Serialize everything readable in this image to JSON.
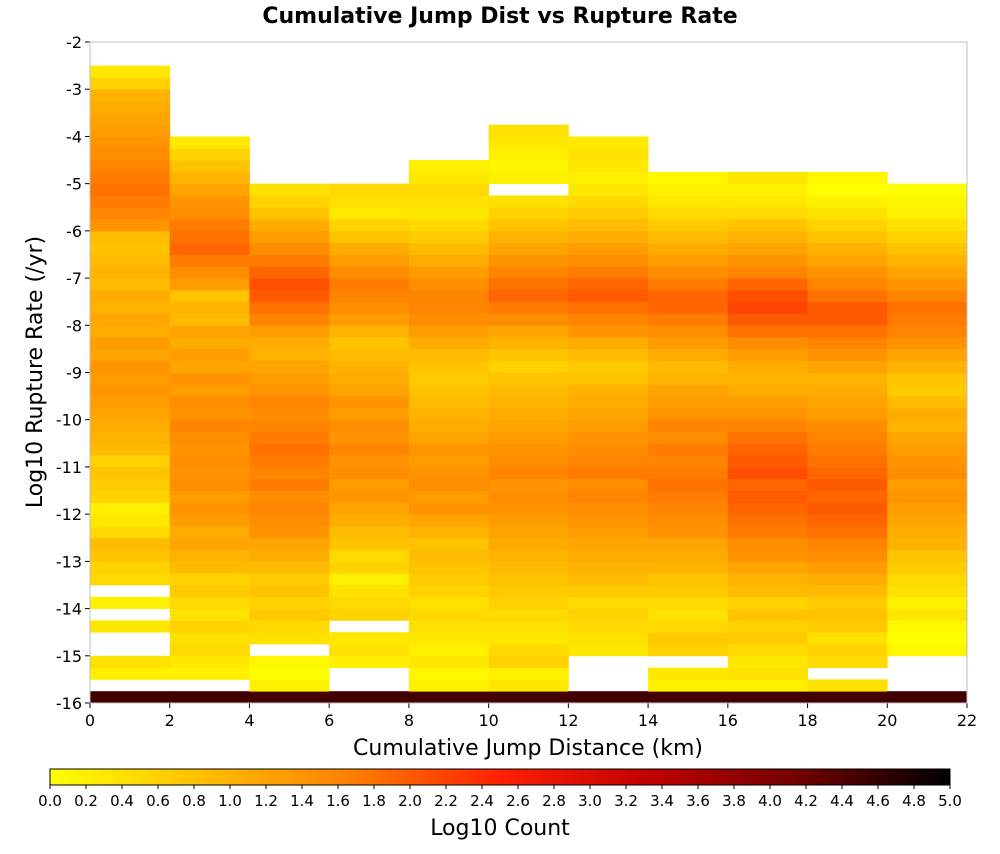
{
  "chart_data": {
    "type": "heatmap",
    "title": "Cumulative Jump Dist vs Rupture Rate",
    "xlabel": "Cumulative Jump Distance (km)",
    "ylabel": "Log10 Rupture Rate (/yr)",
    "xlim": [
      0,
      22
    ],
    "ylim": [
      -16,
      -2
    ],
    "x_ticks": [
      "0",
      "2",
      "4",
      "6",
      "8",
      "10",
      "12",
      "14",
      "16",
      "18",
      "20",
      "22"
    ],
    "y_ticks": [
      "-2",
      "-3",
      "-4",
      "-5",
      "-6",
      "-7",
      "-8",
      "-9",
      "-10",
      "-11",
      "-12",
      "-13",
      "-14",
      "-15",
      "-16"
    ],
    "x_bin_edges": [
      0,
      2,
      4,
      6,
      8,
      10,
      12,
      14,
      16,
      18,
      20,
      22
    ],
    "y_bin_size": 0.25,
    "colorbar": {
      "label": "Log10 Count",
      "range": [
        0,
        5
      ],
      "ticks": [
        "0.0",
        "0.2",
        "0.4",
        "0.6",
        "0.8",
        "1.0",
        "1.2",
        "1.4",
        "1.6",
        "1.8",
        "2.0",
        "2.2",
        "2.4",
        "2.6",
        "2.8",
        "3.0",
        "3.2",
        "3.4",
        "3.6",
        "3.8",
        "4.0",
        "4.2",
        "4.4",
        "4.6",
        "4.8",
        "5.0"
      ],
      "colors": [
        "#ffff00",
        "#ffc000",
        "#ff8000",
        "#ff2000",
        "#c00000",
        "#700000",
        "#000000"
      ]
    },
    "columns": [
      {
        "x_range": [
          0,
          2
        ],
        "y_start": -16,
        "values": [
          4.5,
          null,
          0.2,
          0.4,
          null,
          null,
          0.3,
          null,
          0.2,
          null,
          0.5,
          0.6,
          0.8,
          0.9,
          0.5,
          0.3,
          0.2,
          0.6,
          0.7,
          0.8,
          0.6,
          0.9,
          1.0,
          1.1,
          1.2,
          1.3,
          1.4,
          1.3,
          1.4,
          1.2,
          1.3,
          1.1,
          1.2,
          1.0,
          1.1,
          0.9,
          1.0,
          0.9,
          0.8,
          0.9,
          1.4,
          1.6,
          1.7,
          1.8,
          1.7,
          1.6,
          1.5,
          1.4,
          1.3,
          1.2,
          1.1,
          1.0,
          0.6,
          0.3,
          null,
          null,
          null,
          null
        ]
      },
      {
        "x_range": [
          2,
          4
        ],
        "y_start": -16,
        "values": [
          4.5,
          null,
          0.2,
          0.3,
          0.5,
          0.4,
          0.6,
          0.4,
          0.5,
          0.7,
          0.6,
          0.9,
          1.0,
          1.2,
          1.1,
          1.3,
          1.4,
          1.3,
          1.5,
          1.4,
          1.5,
          1.4,
          1.5,
          1.6,
          1.4,
          1.5,
          1.3,
          1.4,
          1.2,
          1.3,
          1.1,
          1.2,
          0.9,
          1.0,
          0.8,
          1.3,
          1.5,
          1.7,
          1.9,
          1.8,
          1.7,
          1.5,
          1.4,
          1.2,
          1.0,
          0.8,
          0.6,
          0.3,
          null,
          null,
          null,
          null,
          null,
          null,
          null,
          null,
          null,
          null
        ]
      },
      {
        "x_range": [
          4,
          6
        ],
        "y_start": -16,
        "values": [
          4.5,
          0.2,
          0.0,
          0.1,
          null,
          0.4,
          0.5,
          0.7,
          0.6,
          0.8,
          0.7,
          0.9,
          1.1,
          1.2,
          1.4,
          1.5,
          1.6,
          1.5,
          1.7,
          1.6,
          1.7,
          1.8,
          1.7,
          1.6,
          1.5,
          1.6,
          1.4,
          1.3,
          1.2,
          1.0,
          1.1,
          1.3,
          1.6,
          1.8,
          2.0,
          2.1,
          1.9,
          1.7,
          1.5,
          1.3,
          1.1,
          0.8,
          0.6,
          0.4,
          null,
          null,
          null,
          null,
          null,
          null,
          null,
          null,
          null,
          null,
          null,
          null,
          null,
          null
        ]
      },
      {
        "x_range": [
          6,
          8
        ],
        "y_start": -16,
        "values": [
          4.5,
          null,
          null,
          0.2,
          0.4,
          0.3,
          null,
          0.6,
          0.5,
          0.4,
          0.2,
          0.6,
          0.5,
          0.8,
          0.9,
          1.1,
          1.2,
          1.4,
          1.3,
          1.5,
          1.4,
          1.6,
          1.4,
          1.5,
          1.3,
          1.4,
          1.2,
          1.1,
          1.0,
          0.9,
          0.8,
          1.0,
          1.3,
          1.5,
          1.6,
          1.7,
          1.5,
          1.3,
          1.1,
          0.8,
          0.6,
          0.3,
          0.4,
          0.5,
          null,
          null,
          null,
          null,
          null,
          null,
          null,
          null,
          null,
          null,
          null,
          null,
          null,
          null
        ]
      },
      {
        "x_range": [
          8,
          10
        ],
        "y_start": -16,
        "values": [
          4.5,
          0.2,
          0.1,
          0.3,
          0.2,
          0.3,
          0.4,
          0.5,
          0.4,
          0.6,
          0.7,
          0.8,
          0.9,
          0.8,
          1.0,
          1.2,
          1.4,
          1.3,
          1.5,
          1.4,
          1.3,
          1.4,
          1.2,
          1.1,
          1.0,
          0.9,
          0.8,
          0.7,
          0.8,
          0.9,
          1.1,
          1.3,
          1.5,
          1.6,
          1.6,
          1.5,
          1.3,
          1.1,
          0.9,
          0.7,
          0.5,
          0.3,
          0.4,
          0.5,
          0.3,
          0.2,
          null,
          null,
          null,
          null,
          null,
          null,
          null,
          null,
          null,
          null,
          null,
          null
        ]
      },
      {
        "x_range": [
          10,
          12
        ],
        "y_start": -16,
        "values": [
          4.5,
          0.3,
          0.2,
          0.6,
          0.5,
          0.3,
          0.4,
          0.5,
          0.6,
          0.7,
          0.8,
          0.9,
          1.0,
          1.1,
          1.2,
          1.3,
          1.4,
          1.5,
          1.4,
          1.6,
          1.5,
          1.4,
          1.3,
          1.2,
          1.1,
          1.0,
          0.9,
          0.8,
          0.6,
          0.8,
          1.0,
          1.2,
          1.5,
          1.7,
          1.9,
          1.8,
          1.6,
          1.4,
          1.2,
          1.0,
          0.8,
          0.6,
          0.4,
          null,
          0.2,
          0.1,
          0.2,
          0.3,
          0.4,
          null,
          null,
          null,
          null,
          null,
          null,
          null,
          null,
          null
        ]
      },
      {
        "x_range": [
          12,
          14
        ],
        "y_start": -16,
        "values": [
          4.5,
          null,
          null,
          null,
          0.3,
          0.4,
          0.5,
          0.6,
          0.5,
          0.7,
          0.9,
          1.0,
          1.1,
          1.2,
          1.3,
          1.4,
          1.5,
          1.6,
          1.5,
          1.7,
          1.6,
          1.5,
          1.4,
          1.3,
          1.2,
          1.1,
          1.0,
          0.8,
          0.7,
          0.9,
          1.1,
          1.4,
          1.6,
          1.8,
          2.0,
          1.9,
          1.7,
          1.5,
          1.3,
          1.1,
          0.9,
          0.7,
          0.5,
          0.3,
          0.2,
          0.3,
          0.4,
          0.3,
          null,
          null,
          null,
          null,
          null,
          null,
          null,
          null,
          null,
          null
        ]
      },
      {
        "x_range": [
          14,
          16
        ],
        "y_start": -16,
        "values": [
          4.5,
          0.2,
          0.3,
          null,
          0.6,
          0.7,
          0.5,
          0.4,
          0.5,
          0.7,
          0.8,
          1.0,
          1.1,
          1.2,
          1.4,
          1.5,
          1.6,
          1.7,
          1.8,
          1.7,
          1.6,
          1.7,
          1.5,
          1.6,
          1.4,
          1.3,
          1.2,
          1.0,
          0.9,
          1.1,
          1.3,
          1.5,
          1.7,
          1.9,
          1.9,
          1.7,
          1.5,
          1.3,
          1.1,
          0.9,
          0.7,
          0.5,
          0.3,
          0.2,
          0.1,
          null,
          null,
          null,
          null,
          null,
          null,
          null,
          null,
          null,
          null,
          null,
          null,
          null
        ]
      },
      {
        "x_range": [
          16,
          18
        ],
        "y_start": -16,
        "values": [
          4.5,
          0.2,
          0.4,
          0.3,
          0.5,
          0.7,
          0.6,
          0.8,
          0.6,
          0.9,
          1.0,
          1.2,
          1.4,
          1.5,
          1.7,
          1.8,
          1.9,
          2.0,
          1.9,
          2.1,
          2.0,
          1.9,
          1.8,
          1.6,
          1.4,
          1.3,
          1.1,
          1.0,
          1.1,
          1.3,
          1.5,
          1.8,
          2.0,
          2.2,
          2.1,
          1.9,
          1.6,
          1.4,
          1.2,
          1.0,
          0.8,
          0.5,
          0.3,
          0.2,
          0.3,
          null,
          null,
          null,
          null,
          null,
          null,
          null,
          null,
          null,
          null,
          null,
          null,
          null
        ]
      },
      {
        "x_range": [
          18,
          20
        ],
        "y_start": -16,
        "values": [
          4.5,
          0.4,
          null,
          0.5,
          0.6,
          0.4,
          0.7,
          0.8,
          0.7,
          0.9,
          1.1,
          1.3,
          1.5,
          1.6,
          1.8,
          1.9,
          2.0,
          1.9,
          2.0,
          1.9,
          1.8,
          1.7,
          1.6,
          1.5,
          1.3,
          1.2,
          1.1,
          1.0,
          1.2,
          1.4,
          1.6,
          1.8,
          2.0,
          2.0,
          1.8,
          1.6,
          1.4,
          1.2,
          1.0,
          0.8,
          0.6,
          0.4,
          0.2,
          0.0,
          0.1,
          null,
          null,
          null,
          null,
          null,
          null,
          null,
          null,
          null,
          null,
          null,
          null,
          null
        ]
      },
      {
        "x_range": [
          20,
          22
        ],
        "y_start": -16,
        "values": [
          4.5,
          null,
          null,
          null,
          0.1,
          0.0,
          0.1,
          0.3,
          0.2,
          0.4,
          0.5,
          0.7,
          0.8,
          1.0,
          1.1,
          1.2,
          1.3,
          1.4,
          1.3,
          1.5,
          1.4,
          1.3,
          1.2,
          1.0,
          1.1,
          0.9,
          0.7,
          0.8,
          1.0,
          1.2,
          1.4,
          1.6,
          1.7,
          1.8,
          1.6,
          1.4,
          1.2,
          1.0,
          0.8,
          0.6,
          0.4,
          0.2,
          0.1,
          0.0,
          null,
          null,
          null,
          null,
          null,
          null,
          null,
          null,
          null,
          null,
          null,
          null,
          null,
          null
        ]
      }
    ]
  }
}
